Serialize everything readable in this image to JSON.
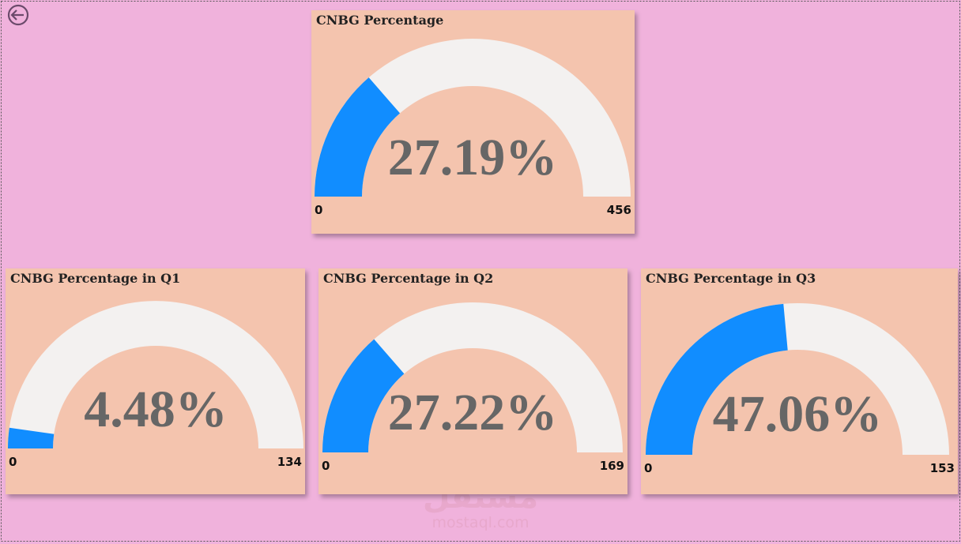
{
  "chart_data": [
    {
      "type": "gauge",
      "title": "CNBG Percentage",
      "values": [
        124
      ],
      "value_labels": [
        "27.19%"
      ],
      "ylim": [
        0,
        456
      ],
      "yticks": [
        0,
        456
      ],
      "color": "#118dff",
      "track_color": "#f3f1f0"
    },
    {
      "type": "gauge",
      "title": "CNBG Percentage in Q1",
      "values": [
        6
      ],
      "value_labels": [
        "4.48%"
      ],
      "ylim": [
        0,
        134
      ],
      "yticks": [
        0,
        134
      ],
      "color": "#118dff",
      "track_color": "#f3f1f0"
    },
    {
      "type": "gauge",
      "title": "CNBG Percentage in Q2",
      "values": [
        46
      ],
      "value_labels": [
        "27.22%"
      ],
      "ylim": [
        0,
        169
      ],
      "yticks": [
        0,
        169
      ],
      "color": "#118dff",
      "track_color": "#f3f1f0"
    },
    {
      "type": "gauge",
      "title": "CNBG Percentage in Q3",
      "values": [
        72
      ],
      "value_labels": [
        "47.06%"
      ],
      "ylim": [
        0,
        153
      ],
      "yticks": [
        0,
        153
      ],
      "color": "#118dff",
      "track_color": "#f3f1f0"
    }
  ],
  "watermark": {
    "arabic": "مستقل",
    "latin": "mostaql.com"
  }
}
